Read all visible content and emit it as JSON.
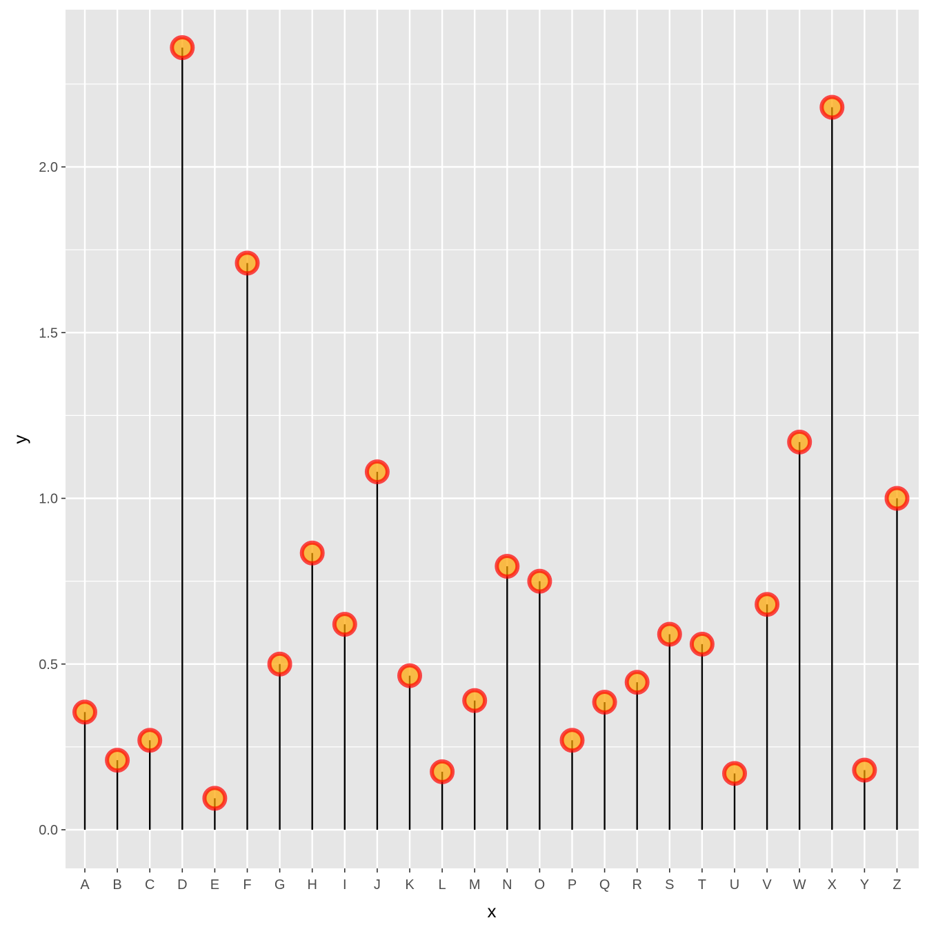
{
  "chart_data": {
    "type": "lollipop",
    "xlabel": "x",
    "ylabel": "y",
    "ylim": [
      -0.12,
      2.49
    ],
    "yticks": [
      0.0,
      0.5,
      1.0,
      1.5,
      2.0
    ],
    "ytick_labels": [
      "0.0",
      "0.5",
      "1.0",
      "1.5",
      "2.0"
    ],
    "grid": true,
    "legend": "none",
    "categories": [
      "A",
      "B",
      "C",
      "D",
      "E",
      "F",
      "G",
      "H",
      "I",
      "J",
      "K",
      "L",
      "M",
      "N",
      "O",
      "P",
      "Q",
      "R",
      "S",
      "T",
      "U",
      "V",
      "W",
      "X",
      "Y",
      "Z"
    ],
    "values": [
      0.355,
      0.21,
      0.27,
      2.36,
      0.095,
      1.71,
      0.5,
      0.835,
      0.62,
      1.08,
      0.465,
      0.175,
      0.39,
      0.795,
      0.75,
      0.27,
      0.385,
      0.445,
      0.59,
      0.56,
      0.17,
      0.68,
      1.17,
      2.18,
      0.18,
      1.0
    ],
    "colors": {
      "panel": "#e6e6e6",
      "grid": "#ffffff",
      "stem": "#000000",
      "point_fill": "#ffa500",
      "point_stroke": "#ff0000",
      "tick_text": "#4d4d4d"
    }
  }
}
